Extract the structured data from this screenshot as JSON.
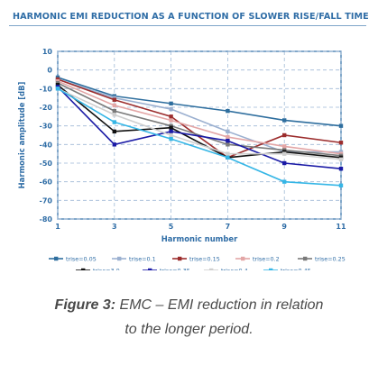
{
  "chart_data": {
    "type": "line",
    "title": "HARMONIC EMI REDUCTION AS A FUNCTION OF SLOWER RISE/FALL TIME",
    "xlabel": "Harmonic number",
    "ylabel": "Harmonic amplitude [dB]",
    "x": [
      1,
      3,
      5,
      7,
      9,
      11
    ],
    "x_ticks": [
      "1",
      "3",
      "5",
      "7",
      "9",
      "11"
    ],
    "ylim": [
      -80,
      10
    ],
    "y_ticks": [
      "10",
      "0",
      "-10",
      "-20",
      "-30",
      "-40",
      "-50",
      "-60",
      "-70",
      "-80"
    ],
    "grid": true,
    "legend_position": "bottom",
    "series": [
      {
        "name": "trise=0.05",
        "color": "#2e6e9e",
        "marker": "square",
        "values": [
          -4,
          -14,
          -18,
          -22,
          -27,
          -30
        ]
      },
      {
        "name": "trise=0.1",
        "color": "#9bb0d0",
        "marker": "square",
        "values": [
          -5,
          -15,
          -21,
          -33,
          -44,
          -44
        ]
      },
      {
        "name": "trise=0.15",
        "color": "#9c2d2d",
        "marker": "square",
        "values": [
          -5,
          -16,
          -25,
          -47,
          -35,
          -39
        ]
      },
      {
        "name": "trise=0.2",
        "color": "#e3a6a6",
        "marker": "square",
        "values": [
          -6,
          -19,
          -27,
          -36,
          -41,
          -45
        ]
      },
      {
        "name": "trise=0.25",
        "color": "#7a7a7a",
        "marker": "square",
        "values": [
          -7,
          -22,
          -30,
          -40,
          -43,
          -46
        ]
      },
      {
        "name": "trise=3.0",
        "color": "#111111",
        "marker": "square",
        "values": [
          -8,
          -33,
          -31,
          -47,
          -44,
          -47
        ]
      },
      {
        "name": "trise=0.35",
        "color": "#1a1aa6",
        "marker": "square",
        "values": [
          -9,
          -40,
          -33,
          -38,
          -50,
          -53
        ]
      },
      {
        "name": "trise=0.4",
        "color": "#cfcfcf",
        "marker": "square",
        "values": [
          -10,
          -24,
          -35,
          -45,
          -45,
          -48
        ]
      },
      {
        "name": "trise=0.45",
        "color": "#35b6e6",
        "marker": "square",
        "values": [
          -10,
          -28,
          -37,
          -47,
          -60,
          -62
        ]
      }
    ]
  },
  "caption": {
    "label": "Figure 3:",
    "text_line1": " EMC – EMI reduction in relation",
    "text_line2": "to the longer period."
  }
}
